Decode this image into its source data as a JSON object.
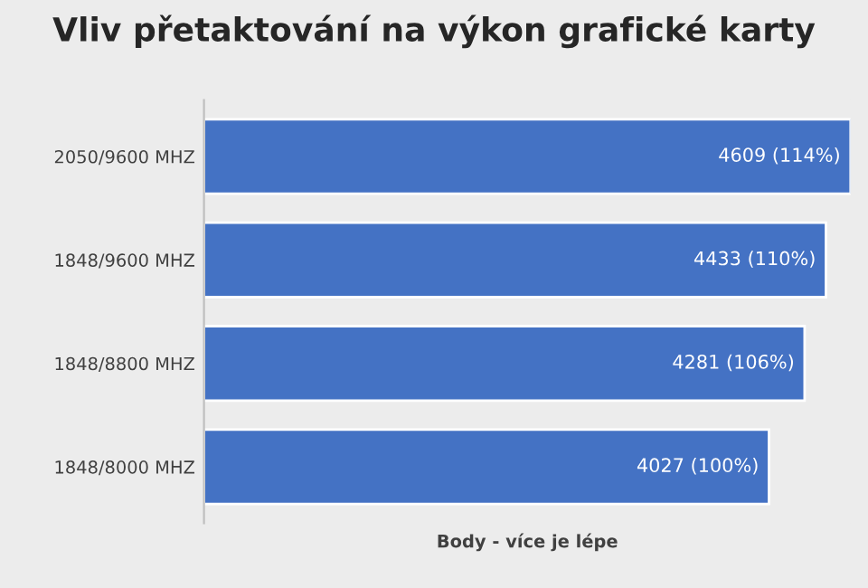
{
  "chart_data": {
    "type": "bar",
    "orientation": "horizontal",
    "title": "Vliv přetaktování na výkon grafické karty",
    "xlabel": "Body - více je lépe",
    "categories": [
      "2050/9600 MHZ",
      "1848/9600 MHZ",
      "1848/8800 MHZ",
      "1848/8000 MHZ"
    ],
    "values": [
      4609,
      4433,
      4281,
      4027
    ],
    "value_labels": [
      "4609 (114%)",
      "4433 (110%)",
      "4281 (106%)",
      "4027 (100%)"
    ],
    "color": "#4472c4",
    "grid": false,
    "legend": false
  }
}
